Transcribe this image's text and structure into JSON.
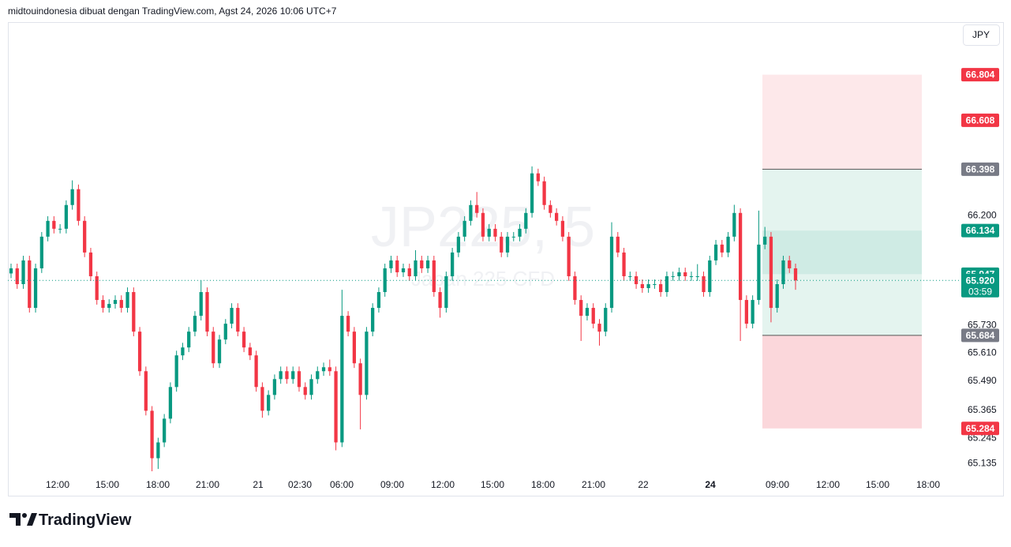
{
  "header": "midtouindonesia dibuat dengan TradingView.com, Agst 24, 2026 10:06 UTC+7",
  "currency": "JPY",
  "logo": "TradingView",
  "chart_data": {
    "type": "candlestick",
    "watermark": "JP225, 5",
    "watermark_subtitle": "Japan 225 CFD",
    "x_labels": [
      "12:00",
      "15:00",
      "18:00",
      "21:00",
      "21",
      "02:30",
      "06:00",
      "09:00",
      "12:00",
      "15:00",
      "18:00",
      "21:00",
      "22",
      "24",
      "09:00",
      "12:00",
      "15:00",
      "18:00"
    ],
    "up_color": "#089981",
    "down_color": "#f23645",
    "ylim": [
      65.09,
      67.03
    ],
    "yticks": [
      {
        "value": 66.2,
        "label": "66.200"
      },
      {
        "value": 65.73,
        "label": "65.730"
      },
      {
        "value": 65.61,
        "label": "65.610"
      },
      {
        "value": 65.49,
        "label": "65.490"
      },
      65.365,
      65.245,
      65.135
    ],
    "open": [
      65.95,
      65.972,
      65.904,
      66.006,
      65.802,
      65.972,
      66.108,
      66.176,
      66.142,
      66.142,
      66.244,
      66.312,
      66.176,
      66.04,
      65.938,
      65.836,
      65.802,
      65.819,
      65.836,
      65.802,
      65.87,
      65.7,
      65.53,
      65.36,
      65.156,
      65.224,
      65.326,
      65.462,
      65.598,
      65.632,
      65.7,
      65.768,
      65.87,
      65.7,
      65.564,
      65.666,
      65.734,
      65.802,
      65.7,
      65.632,
      65.598,
      65.462,
      65.36,
      65.428,
      65.496,
      65.53,
      65.496,
      65.53,
      65.462,
      65.428,
      65.496,
      65.53,
      65.547,
      65.53,
      65.224,
      65.768,
      65.7,
      65.564,
      65.428,
      65.7,
      65.802,
      65.87,
      65.972,
      66.006,
      65.955,
      65.972,
      65.938,
      66.006,
      65.972,
      66.006,
      65.87,
      65.802,
      65.938,
      66.04,
      66.108,
      66.176,
      66.244,
      66.21,
      66.108,
      66.142,
      66.108,
      66.04,
      66.108,
      66.108,
      66.142,
      66.21,
      66.38,
      66.346,
      66.244,
      66.21,
      66.176,
      66.108,
      65.938,
      65.836,
      65.768,
      65.802,
      65.734,
      65.7,
      65.802,
      66.108,
      66.04,
      65.938,
      65.938,
      65.904,
      65.887,
      65.904,
      65.904,
      65.87,
      65.938,
      65.938,
      65.955,
      65.938,
      65.938,
      65.938,
      65.87,
      66.006,
      66.074,
      66.04,
      66.108,
      66.21,
      65.836,
      65.734,
      65.836,
      66.074,
      66.108,
      65.802,
      65.904,
      66.006,
      65.972
    ],
    "high": [
      65.992,
      65.992,
      66.026,
      66.026,
      65.992,
      66.128,
      66.196,
      66.196,
      66.162,
      66.264,
      66.35,
      66.332,
      66.196,
      66.06,
      65.958,
      65.856,
      65.839,
      65.856,
      65.856,
      65.89,
      65.89,
      65.72,
      65.55,
      65.38,
      65.244,
      65.346,
      65.482,
      65.618,
      65.652,
      65.72,
      65.788,
      65.92,
      65.89,
      65.72,
      65.686,
      65.754,
      65.822,
      65.822,
      65.72,
      65.652,
      65.618,
      65.482,
      65.448,
      65.516,
      65.55,
      65.55,
      65.55,
      65.55,
      65.482,
      65.516,
      65.55,
      65.567,
      65.58,
      65.55,
      65.88,
      65.788,
      65.72,
      65.584,
      65.72,
      65.822,
      65.89,
      65.992,
      66.026,
      66.026,
      65.992,
      65.992,
      66.05,
      66.026,
      66.026,
      66.026,
      65.89,
      65.958,
      66.06,
      66.128,
      66.196,
      66.264,
      66.3,
      66.23,
      66.162,
      66.162,
      66.128,
      66.128,
      66.128,
      66.162,
      66.23,
      66.41,
      66.4,
      66.366,
      66.264,
      66.23,
      66.196,
      66.128,
      65.958,
      65.856,
      65.822,
      65.822,
      65.754,
      65.822,
      66.17,
      66.128,
      66.06,
      65.958,
      65.958,
      65.924,
      65.924,
      65.924,
      65.924,
      65.958,
      65.958,
      65.975,
      65.975,
      65.958,
      65.99,
      65.958,
      66.026,
      66.094,
      66.094,
      66.128,
      66.245,
      66.23,
      65.856,
      65.856,
      66.22,
      66.15,
      66.128,
      65.924,
      66.026,
      66.026,
      65.992
    ],
    "low": [
      65.93,
      65.884,
      65.884,
      65.782,
      65.782,
      65.952,
      66.088,
      66.122,
      66.122,
      66.122,
      66.224,
      66.156,
      66.02,
      65.918,
      65.816,
      65.782,
      65.782,
      65.799,
      65.782,
      65.782,
      65.68,
      65.51,
      65.34,
      65.1,
      65.11,
      65.204,
      65.306,
      65.442,
      65.578,
      65.612,
      65.68,
      65.748,
      65.68,
      65.544,
      65.544,
      65.646,
      65.714,
      65.68,
      65.612,
      65.578,
      65.442,
      65.33,
      65.34,
      65.408,
      65.476,
      65.476,
      65.476,
      65.442,
      65.408,
      65.408,
      65.476,
      65.51,
      65.51,
      65.19,
      65.204,
      65.68,
      65.544,
      65.28,
      65.408,
      65.68,
      65.782,
      65.85,
      65.952,
      65.935,
      65.935,
      65.918,
      65.918,
      65.952,
      65.952,
      65.85,
      65.76,
      65.782,
      65.918,
      66.02,
      66.088,
      66.156,
      66.19,
      66.088,
      66.088,
      66.088,
      66.02,
      66.02,
      66.088,
      66.088,
      66.122,
      66.19,
      66.326,
      66.224,
      66.19,
      66.156,
      66.088,
      65.918,
      65.816,
      65.66,
      65.748,
      65.714,
      65.64,
      65.68,
      65.782,
      66.02,
      65.918,
      65.918,
      65.884,
      65.867,
      65.867,
      65.884,
      65.85,
      65.85,
      65.918,
      65.918,
      65.918,
      65.918,
      65.918,
      65.85,
      65.85,
      65.986,
      66.02,
      66.02,
      66.088,
      65.66,
      65.714,
      65.714,
      65.816,
      66.054,
      65.74,
      65.782,
      65.884,
      65.952,
      65.88
    ],
    "close": [
      65.972,
      65.904,
      66.006,
      65.802,
      65.972,
      66.108,
      66.176,
      66.142,
      66.142,
      66.244,
      66.312,
      66.176,
      66.04,
      65.938,
      65.836,
      65.802,
      65.819,
      65.836,
      65.802,
      65.87,
      65.7,
      65.53,
      65.36,
      65.156,
      65.224,
      65.326,
      65.462,
      65.598,
      65.632,
      65.7,
      65.768,
      65.87,
      65.7,
      65.564,
      65.666,
      65.734,
      65.802,
      65.7,
      65.632,
      65.598,
      65.462,
      65.36,
      65.428,
      65.496,
      65.53,
      65.496,
      65.53,
      65.462,
      65.428,
      65.496,
      65.53,
      65.547,
      65.53,
      65.224,
      65.768,
      65.7,
      65.564,
      65.428,
      65.7,
      65.802,
      65.87,
      65.972,
      66.006,
      65.955,
      65.972,
      65.938,
      66.006,
      65.972,
      66.006,
      65.87,
      65.802,
      65.938,
      66.04,
      66.108,
      66.176,
      66.244,
      66.21,
      66.108,
      66.142,
      66.108,
      66.04,
      66.108,
      66.108,
      66.142,
      66.21,
      66.38,
      66.346,
      66.244,
      66.21,
      66.176,
      66.108,
      65.938,
      65.836,
      65.768,
      65.802,
      65.734,
      65.7,
      65.802,
      66.108,
      66.04,
      65.938,
      65.938,
      65.904,
      65.887,
      65.904,
      65.904,
      65.87,
      65.938,
      65.938,
      65.955,
      65.938,
      65.938,
      65.938,
      65.87,
      66.006,
      66.074,
      66.04,
      66.108,
      66.21,
      65.836,
      65.734,
      65.836,
      66.074,
      66.108,
      65.802,
      65.904,
      66.006,
      65.972,
      65.92
    ],
    "zones": [
      {
        "from": 66.398,
        "to": 66.804,
        "color": "#fde8ea"
      },
      {
        "from": 65.684,
        "to": 66.398,
        "color": "#e4f4ef"
      },
      {
        "from": 65.947,
        "to": 66.134,
        "color": "#cfebe4"
      },
      {
        "from": 65.284,
        "to": 65.684,
        "color": "#fbd7db"
      }
    ],
    "price_lines": [
      {
        "value": 66.804,
        "color": "#f23645"
      },
      {
        "value": 66.608,
        "color": "#f23645"
      },
      {
        "value": 66.398,
        "color": "#787b86"
      },
      {
        "value": 66.134,
        "color": "#089981"
      },
      {
        "value": 65.947,
        "color": "#089981"
      },
      {
        "value": 65.92,
        "label": "65.920",
        "color": "#089981",
        "countdown": "03:59"
      },
      {
        "value": 65.684,
        "color": "#787b86"
      },
      {
        "value": 65.284,
        "color": "#f23645"
      }
    ]
  }
}
